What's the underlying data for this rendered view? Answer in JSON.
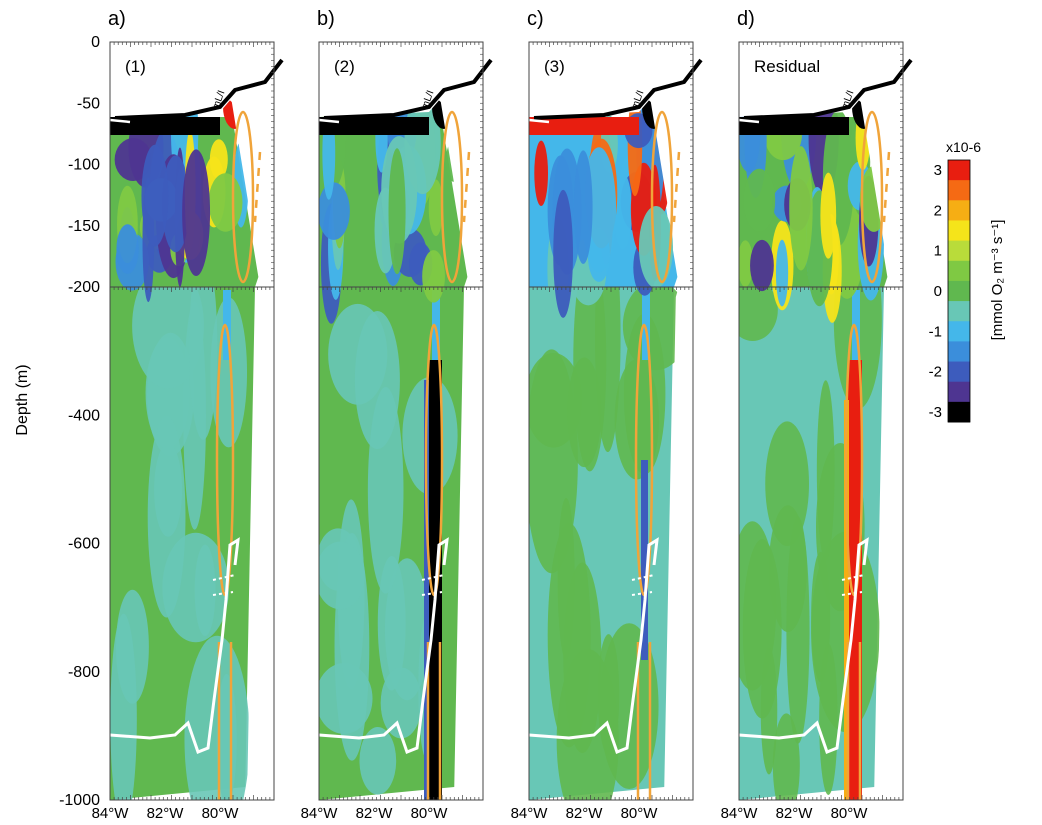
{
  "chart_data": {
    "type": "heatmap",
    "y_axis_label": "Depth (m)",
    "y_ticks_upper": [
      0,
      -50,
      -100,
      -150,
      -200
    ],
    "y_ticks_lower": [
      -400,
      -600,
      -800,
      -1000
    ],
    "upper_ylim": [
      -200,
      0
    ],
    "lower_ylim": [
      -1000,
      -200
    ],
    "x_ticks": [
      "84°W",
      "82°W",
      "80°W"
    ],
    "xlim": [
      -84,
      -78
    ],
    "colorbar": {
      "label": "[mmol O₂ m⁻³ s⁻¹]",
      "scale": "x10-6",
      "ticks": [
        3,
        2,
        1,
        0,
        -1,
        -2,
        -3
      ],
      "colors": [
        "#e81e10",
        "#f56a14",
        "#f6ae14",
        "#f5e41a",
        "#b9dc3a",
        "#7fc943",
        "#60b84f",
        "#68c7b6",
        "#44b7ea",
        "#3b8edb",
        "#3d5cbd",
        "#4e3591",
        "#000000"
      ]
    },
    "ml_label": "mL/I",
    "panels": [
      {
        "letter": "a)",
        "label": "(1)",
        "deep_feature": "none",
        "cmap_mid": "green"
      },
      {
        "letter": "b)",
        "label": "(2)",
        "deep_feature": "strong negative near slope",
        "cmap_mid": "green"
      },
      {
        "letter": "c)",
        "label": "(3)",
        "deep_feature": "weak negative near slope",
        "cmap_mid": "teal"
      },
      {
        "letter": "d)",
        "label": "Residual",
        "deep_feature": "strong positive near slope",
        "cmap_mid": "teal"
      }
    ]
  }
}
